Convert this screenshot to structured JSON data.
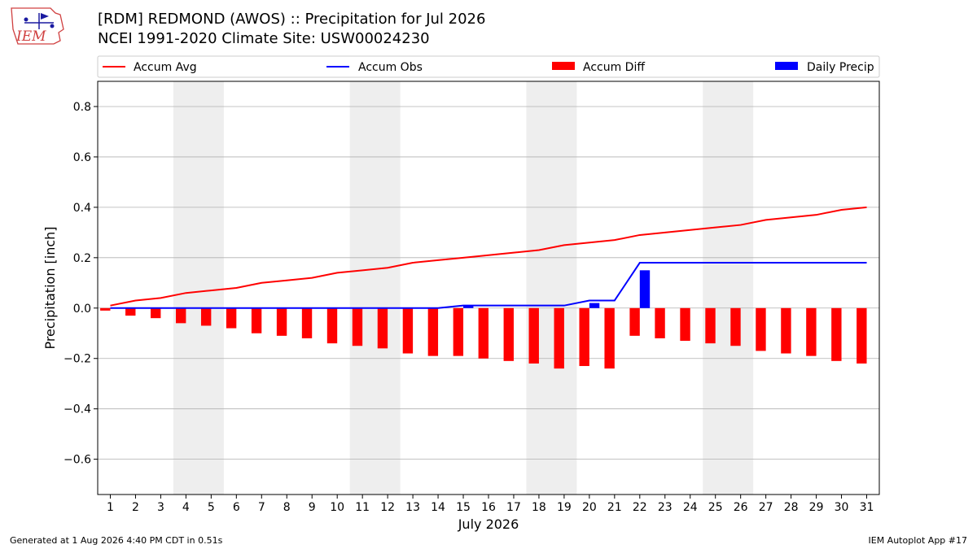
{
  "header": {
    "logo_text": "IEM",
    "title_line1": "[RDM] REDMOND (AWOS) :: Precipitation for Jul 2026",
    "title_line2": "NCEI 1991-2020 Climate Site: USW00024230"
  },
  "footer": {
    "left": "Generated at 1 Aug 2026 4:40 PM CDT in 0.51s",
    "right": "IEM Autoplot App #17"
  },
  "colors": {
    "accum_avg": "#ff0000",
    "accum_obs": "#0000ff",
    "accum_diff": "#ff0000",
    "daily_precip": "#0000ff",
    "weekend_shade": "#eeeeee",
    "grid": "#b0b0b0"
  },
  "chart_data": {
    "type": "bar",
    "xlabel": "July 2026",
    "ylabel": "Precipitation [inch]",
    "ylim": [
      -0.74,
      0.9
    ],
    "yticks": [
      -0.6,
      -0.4,
      -0.2,
      0.0,
      0.2,
      0.4,
      0.6,
      0.8
    ],
    "ytick_labels": [
      "−0.6",
      "−0.4",
      "−0.2",
      "0.0",
      "0.2",
      "0.4",
      "0.6",
      "0.8"
    ],
    "grid": "horizontal",
    "legend_position": "top",
    "x": [
      1,
      2,
      3,
      4,
      5,
      6,
      7,
      8,
      9,
      10,
      11,
      12,
      13,
      14,
      15,
      16,
      17,
      18,
      19,
      20,
      21,
      22,
      23,
      24,
      25,
      26,
      27,
      28,
      29,
      30,
      31
    ],
    "shaded_days": [
      [
        4,
        5
      ],
      [
        11,
        12
      ],
      [
        18,
        19
      ],
      [
        25,
        26
      ]
    ],
    "series": [
      {
        "name": "Accum Avg",
        "kind": "line",
        "values": [
          0.01,
          0.03,
          0.04,
          0.06,
          0.07,
          0.08,
          0.1,
          0.11,
          0.12,
          0.14,
          0.15,
          0.16,
          0.18,
          0.19,
          0.2,
          0.21,
          0.22,
          0.23,
          0.25,
          0.26,
          0.27,
          0.29,
          0.3,
          0.31,
          0.32,
          0.33,
          0.35,
          0.36,
          0.37,
          0.39,
          0.4
        ]
      },
      {
        "name": "Accum Obs",
        "kind": "line",
        "values": [
          0,
          0,
          0,
          0,
          0,
          0,
          0,
          0,
          0,
          0,
          0,
          0,
          0,
          0,
          0.01,
          0.01,
          0.01,
          0.01,
          0.01,
          0.03,
          0.03,
          0.18,
          0.18,
          0.18,
          0.18,
          0.18,
          0.18,
          0.18,
          0.18,
          0.18,
          0.18
        ]
      },
      {
        "name": "Accum Diff",
        "kind": "bar",
        "values": [
          -0.01,
          -0.03,
          -0.04,
          -0.06,
          -0.07,
          -0.08,
          -0.1,
          -0.11,
          -0.12,
          -0.14,
          -0.15,
          -0.16,
          -0.18,
          -0.19,
          -0.19,
          -0.2,
          -0.21,
          -0.22,
          -0.24,
          -0.23,
          -0.24,
          -0.11,
          -0.12,
          -0.13,
          -0.14,
          -0.15,
          -0.17,
          -0.18,
          -0.19,
          -0.21,
          -0.22
        ]
      },
      {
        "name": "Daily Precip",
        "kind": "bar",
        "values": [
          0,
          0,
          0,
          0,
          0,
          0,
          0,
          0,
          0,
          0,
          0,
          0,
          0,
          0,
          0.01,
          0,
          0,
          0,
          0,
          0.02,
          0,
          0.15,
          0,
          0,
          0,
          0,
          0,
          0,
          0,
          0,
          0
        ]
      }
    ]
  }
}
